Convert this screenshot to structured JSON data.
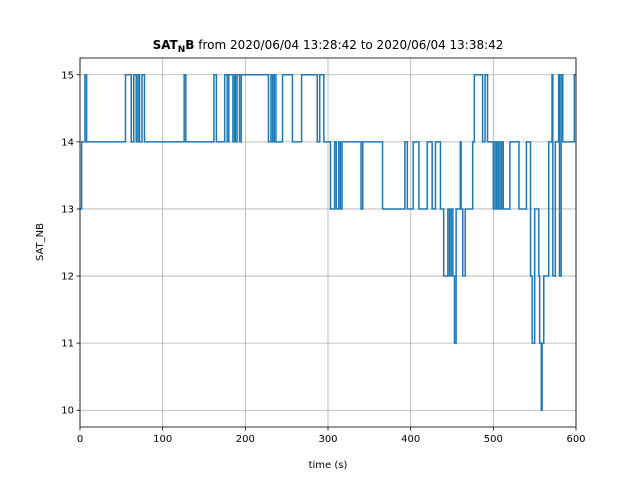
{
  "chart_data": {
    "type": "line",
    "title": {
      "bold_prefix": "SAT",
      "bold_subscript": "N",
      "bold_suffix": "B",
      "rest": " from 2020/06/04 13:28:42 to 2020/06/04 13:38:42"
    },
    "xlabel": "time (s)",
    "ylabel": "SAT_NB",
    "xlim": [
      0,
      600
    ],
    "ylim": [
      9.75,
      15.25
    ],
    "xticks": [
      0,
      100,
      200,
      300,
      400,
      500,
      600
    ],
    "yticks": [
      10,
      11,
      12,
      13,
      14,
      15
    ],
    "grid": true,
    "legend": "none",
    "color": "#1f77b4",
    "series": [
      {
        "step": "post",
        "points": [
          [
            0,
            13
          ],
          [
            2,
            14
          ],
          [
            6,
            15
          ],
          [
            8,
            14
          ],
          [
            55,
            15
          ],
          [
            62,
            14
          ],
          [
            65,
            15
          ],
          [
            68,
            14
          ],
          [
            70,
            15
          ],
          [
            72,
            14
          ],
          [
            75,
            15
          ],
          [
            78,
            14
          ],
          [
            126,
            15
          ],
          [
            128,
            14
          ],
          [
            162,
            15
          ],
          [
            165,
            14
          ],
          [
            175,
            15
          ],
          [
            178,
            14
          ],
          [
            180,
            15
          ],
          [
            182,
            15
          ],
          [
            185,
            14
          ],
          [
            187,
            15
          ],
          [
            188,
            14
          ],
          [
            190,
            15
          ],
          [
            193,
            14
          ],
          [
            195,
            15
          ],
          [
            228,
            14
          ],
          [
            231,
            15
          ],
          [
            233,
            14
          ],
          [
            235,
            15
          ],
          [
            237,
            14
          ],
          [
            245,
            15
          ],
          [
            257,
            14
          ],
          [
            268,
            15
          ],
          [
            287,
            14
          ],
          [
            290,
            15
          ],
          [
            295,
            14
          ],
          [
            303,
            13
          ],
          [
            308,
            14
          ],
          [
            310,
            13
          ],
          [
            313,
            14
          ],
          [
            315,
            13
          ],
          [
            317,
            14
          ],
          [
            340,
            13
          ],
          [
            342,
            14
          ],
          [
            366,
            13
          ],
          [
            393,
            14
          ],
          [
            396,
            13
          ],
          [
            403,
            14
          ],
          [
            410,
            13
          ],
          [
            420,
            14
          ],
          [
            426,
            13
          ],
          [
            430,
            14
          ],
          [
            436,
            13
          ],
          [
            440,
            12
          ],
          [
            445,
            13
          ],
          [
            447,
            12
          ],
          [
            449,
            13
          ],
          [
            451,
            12
          ],
          [
            453,
            11
          ],
          [
            455,
            13
          ],
          [
            460,
            14
          ],
          [
            461,
            13
          ],
          [
            463,
            12
          ],
          [
            466,
            13
          ],
          [
            475,
            14
          ],
          [
            477,
            15
          ],
          [
            487,
            14
          ],
          [
            490,
            15
          ],
          [
            493,
            14
          ],
          [
            500,
            13
          ],
          [
            502,
            14
          ],
          [
            504,
            13
          ],
          [
            506,
            14
          ],
          [
            508,
            13
          ],
          [
            510,
            14
          ],
          [
            512,
            13
          ],
          [
            520,
            14
          ],
          [
            531,
            13
          ],
          [
            540,
            14
          ],
          [
            545,
            12
          ],
          [
            547,
            11
          ],
          [
            550,
            13
          ],
          [
            555,
            12
          ],
          [
            556,
            11
          ],
          [
            558,
            10
          ],
          [
            559,
            11
          ],
          [
            561,
            12
          ],
          [
            567,
            14
          ],
          [
            571,
            15
          ],
          [
            572,
            12
          ],
          [
            575,
            14
          ],
          [
            579,
            15
          ],
          [
            580,
            12
          ],
          [
            582,
            15
          ],
          [
            584,
            14
          ],
          [
            598,
            15
          ],
          [
            600,
            15
          ]
        ]
      }
    ]
  }
}
